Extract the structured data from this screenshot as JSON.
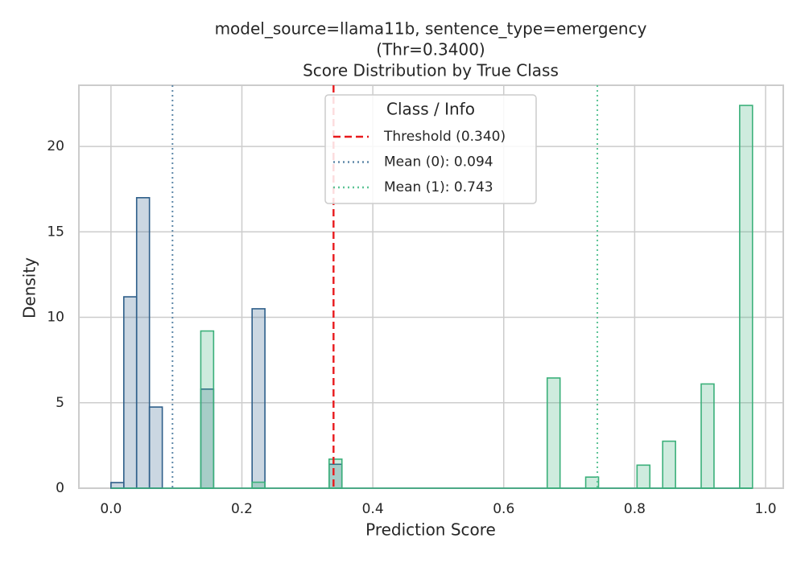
{
  "chart_data": {
    "type": "histogram",
    "title": [
      "model_source=llama11b, sentence_type=emergency",
      "(Thr=0.3400)",
      "Score Distribution by True Class"
    ],
    "x_label": "Prediction Score",
    "y_label": "Density",
    "bins": [
      0,
      0.0196,
      0.0392,
      0.0588,
      0.0784,
      0.098,
      0.1176,
      0.1372,
      0.1568,
      0.1764,
      0.196,
      0.2156,
      0.2352,
      0.2548,
      0.2744,
      0.294,
      0.3136,
      0.3332,
      0.3528,
      0.3724,
      0.392,
      0.4116,
      0.4312,
      0.4508,
      0.4704,
      0.49,
      0.5096,
      0.5292,
      0.5488,
      0.5684,
      0.588,
      0.6076,
      0.6272,
      0.6468,
      0.6664,
      0.686,
      0.7056,
      0.7252,
      0.7448,
      0.7644,
      0.784,
      0.8036,
      0.8232,
      0.8428,
      0.8624,
      0.882,
      0.9016,
      0.9212,
      0.9408,
      0.9604,
      0.98
    ],
    "series": [
      {
        "color": "#2e5f8a",
        "values": [
          0.33,
          11.2,
          17,
          4.75,
          0,
          0,
          0,
          5.8,
          0,
          0,
          0,
          10.5,
          0,
          0,
          0,
          0,
          0,
          1.4,
          0,
          0,
          0,
          0,
          0,
          0,
          0,
          0,
          0,
          0,
          0,
          0,
          0,
          0,
          0,
          0,
          0,
          0,
          0,
          0,
          0,
          0,
          0,
          0,
          0,
          0,
          0,
          0,
          0,
          0,
          0,
          0
        ]
      },
      {
        "color": "#3bb07a",
        "values": [
          0,
          0,
          0,
          0,
          0,
          0,
          0,
          9.2,
          0,
          0,
          0,
          0.35,
          0,
          0,
          0,
          0,
          0,
          1.7,
          0,
          0,
          0,
          0,
          0,
          0,
          0,
          0,
          0,
          0,
          0,
          0,
          0,
          0,
          0,
          0,
          6.45,
          0,
          0,
          0.65,
          0,
          0,
          0,
          1.35,
          0,
          2.75,
          0,
          0,
          6.1,
          0,
          0,
          22.4
        ]
      }
    ],
    "vlines": [
      {
        "x": 0.34,
        "label": "Threshold (0.340)",
        "color": "#e8191c",
        "style": "dashed"
      },
      {
        "x": 0.094,
        "label": "Mean (0): 0.094",
        "color": "#5e88a8",
        "style": "dotted"
      },
      {
        "x": 0.743,
        "label": "Mean (1): 0.743",
        "color": "#5cc495",
        "style": "dotted"
      }
    ],
    "legend_title": "Class / Info",
    "legend_loc": "upper center",
    "xlim": [
      -0.049,
      1.027
    ],
    "ylim": [
      0,
      23.58
    ],
    "xticks": [
      {
        "value": 0,
        "label": "0.0"
      },
      0.2,
      0.4,
      0.6,
      0.8,
      {
        "value": 1,
        "label": "1.0"
      }
    ],
    "yticks": [
      0,
      5,
      10,
      15,
      20
    ],
    "grid": true
  }
}
